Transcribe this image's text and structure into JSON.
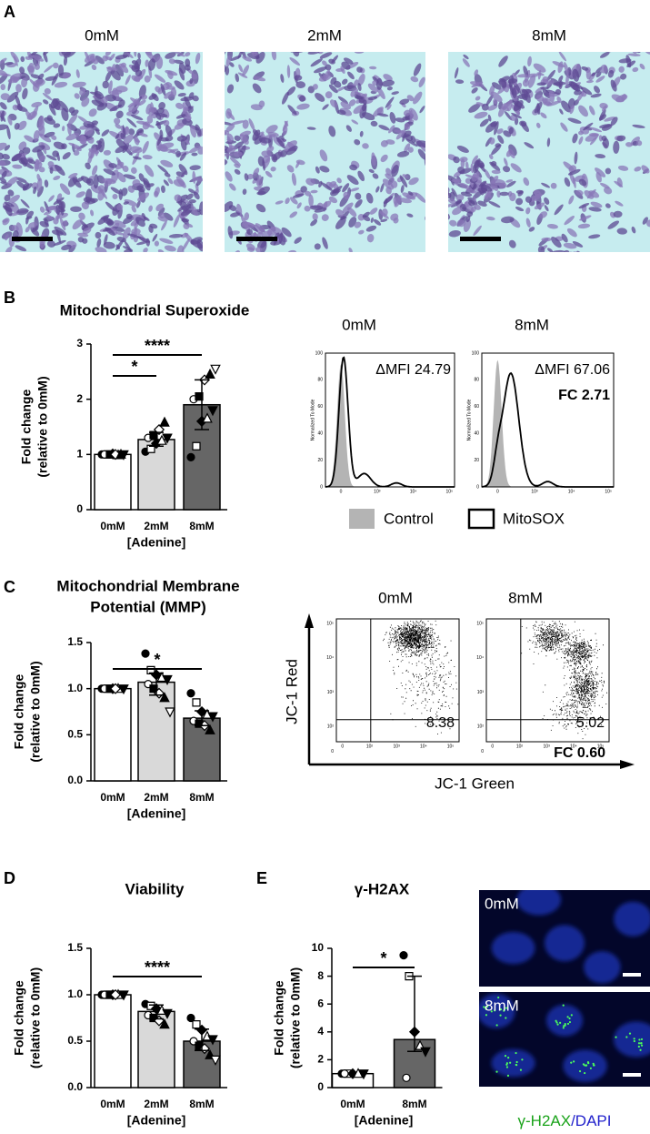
{
  "panel_labels": [
    "A",
    "B",
    "C",
    "D",
    "E"
  ],
  "micrographs": {
    "labels": [
      "0mM",
      "2mM",
      "8mM"
    ]
  },
  "chart_data": [
    {
      "type": "bar",
      "title": "Mitochondrial Superoxide",
      "ylabel": [
        "Fold change",
        "(relative to 0mM)"
      ],
      "xlabel": "[Adenine]",
      "categories": [
        "0mM",
        "2mM",
        "8mM"
      ],
      "colors": [
        "#ffffff",
        "#d9d9d9",
        "#666666"
      ],
      "values": [
        1.0,
        1.27,
        1.9
      ],
      "err_low": [
        null,
        1.15,
        1.45
      ],
      "err_high": [
        null,
        1.4,
        2.35
      ],
      "points": [
        [
          1.0,
          1.0,
          1.01,
          0.99,
          1.0,
          1.0,
          1.0,
          1.0,
          1.0
        ],
        [
          1.05,
          1.1,
          1.2,
          1.25,
          1.3,
          1.3,
          1.35,
          1.45,
          1.58
        ],
        [
          0.95,
          1.15,
          1.6,
          1.65,
          1.8,
          2.0,
          2.05,
          2.35,
          2.45,
          2.55
        ]
      ],
      "ylim": [
        0,
        3
      ],
      "yticks": [
        0,
        1,
        2,
        3
      ],
      "significance": [
        {
          "label": "*",
          "from": "0mM",
          "to": "2mM"
        },
        {
          "label": "****",
          "from": "0mM",
          "to": "8mM"
        }
      ]
    },
    {
      "type": "bar",
      "title": [
        "Mitochondrial Membrane",
        "Potential (MMP)"
      ],
      "ylabel": [
        "Fold change",
        "(relative to 0mM)"
      ],
      "xlabel": "[Adenine]",
      "categories": [
        "0mM",
        "2mM",
        "8mM"
      ],
      "colors": [
        "#ffffff",
        "#d9d9d9",
        "#666666"
      ],
      "values": [
        1.0,
        1.07,
        0.68
      ],
      "err_low": [
        null,
        0.93,
        0.6
      ],
      "err_high": [
        null,
        1.17,
        0.76
      ],
      "points": [
        [
          1.0,
          1.0,
          1.0,
          1.0,
          1.0,
          1.0,
          1.0,
          1.0
        ],
        [
          1.38,
          1.2,
          1.15,
          1.12,
          1.1,
          1.05,
          1.0,
          0.95,
          0.9,
          0.75
        ],
        [
          0.95,
          0.85,
          0.75,
          0.72,
          0.7,
          0.65,
          0.62,
          0.6,
          0.55
        ]
      ],
      "ylim": [
        0,
        1.5
      ],
      "yticks": [
        {
          "value": 0,
          "label": "0.0"
        },
        {
          "value": 0.5,
          "label": "0.5"
        },
        {
          "value": 1,
          "label": "1.0"
        },
        {
          "value": 1.5,
          "label": "1.5"
        }
      ],
      "significance": [
        {
          "label": "*",
          "from": "0mM",
          "to": "8mM"
        }
      ]
    },
    {
      "type": "bar",
      "title": "Viability",
      "ylabel": [
        "Fold change",
        "(relative to 0mM)"
      ],
      "xlabel": "[Adenine]",
      "categories": [
        "0mM",
        "2mM",
        "8mM"
      ],
      "colors": [
        "#ffffff",
        "#d9d9d9",
        "#666666"
      ],
      "values": [
        1.0,
        0.82,
        0.5
      ],
      "err_low": [
        null,
        0.74,
        0.4
      ],
      "err_high": [
        null,
        0.89,
        0.63
      ],
      "points": [
        [
          1.0,
          1.0,
          1.0,
          1.0,
          1.0,
          1.0,
          1.0,
          1.0
        ],
        [
          0.9,
          0.88,
          0.85,
          0.83,
          0.8,
          0.78,
          0.75,
          0.72,
          0.68
        ],
        [
          0.75,
          0.68,
          0.62,
          0.55,
          0.52,
          0.5,
          0.45,
          0.42,
          0.35,
          0.3
        ]
      ],
      "ylim": [
        0,
        1.5
      ],
      "yticks": [
        {
          "value": 0,
          "label": "0.0"
        },
        {
          "value": 0.5,
          "label": "0.5"
        },
        {
          "value": 1,
          "label": "1.0"
        },
        {
          "value": 1.5,
          "label": "1.5"
        }
      ],
      "significance": [
        {
          "label": "****",
          "from": "0mM",
          "to": "8mM"
        }
      ]
    },
    {
      "type": "bar",
      "title": "γ-H2AX",
      "ylabel": [
        "Fold change",
        "(relative to 0mM)"
      ],
      "xlabel": "[Adenine]",
      "categories": [
        "0mM",
        "8mM"
      ],
      "colors": [
        "#ffffff",
        "#666666"
      ],
      "values": [
        1.0,
        3.45
      ],
      "err_low": [
        null,
        2.6
      ],
      "err_high": [
        null,
        8.0
      ],
      "points": [
        [
          1.0,
          1.0,
          1.0,
          1.0,
          1.0,
          1.0
        ],
        [
          9.5,
          8.0,
          4.0,
          3.0,
          2.6,
          0.7
        ]
      ],
      "ylim": [
        0,
        10
      ],
      "yticks": [
        0,
        2,
        4,
        6,
        8,
        10
      ],
      "significance": [
        {
          "label": "*",
          "from": "0mM",
          "to": "8mM"
        }
      ]
    }
  ],
  "superoxide_flow": {
    "labels": [
      "0mM",
      "8mM"
    ],
    "annotations": [
      "ΔMFI 24.79",
      "ΔMFI 67.06"
    ],
    "fold_change": "FC 2.71",
    "y_axis_label": "Normalized To Mode",
    "yticks": [
      "0",
      "20",
      "40",
      "60",
      "80",
      "100"
    ],
    "xticks": [
      "0",
      "10³",
      "10⁴",
      "10⁵"
    ],
    "legend": [
      "Control",
      "MitoSOX"
    ]
  },
  "mmp_flow": {
    "labels": [
      "0mM",
      "8mM"
    ],
    "annotations": [
      "8.38",
      "5.02"
    ],
    "fold_change": "FC 0.60",
    "y_axis_label": "JC-1 Red",
    "x_axis_label": "JC-1 Green",
    "yticks": [
      "10⁵",
      "10⁴",
      "10³",
      "10²",
      "0"
    ],
    "xticks": [
      "0",
      "10²",
      "10³",
      "10⁴",
      "10⁵"
    ]
  },
  "gamma_h2ax_images": {
    "labels": [
      "0mM",
      "8mM"
    ],
    "caption": [
      "γ-H2AX",
      "/DAPI"
    ]
  }
}
